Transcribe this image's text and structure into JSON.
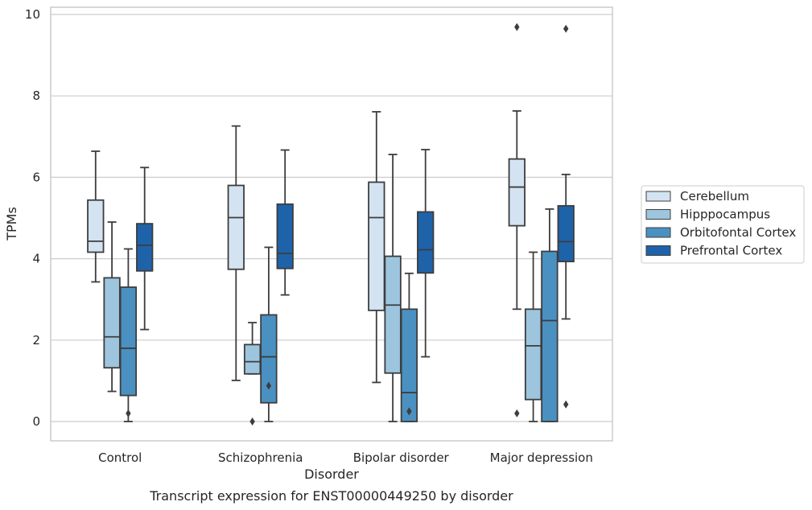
{
  "chart_data": {
    "type": "box",
    "xlabel": "Disorder",
    "ylabel": "TPMs",
    "caption": "Transcript expression for ENST00000449250 by disorder",
    "ylim": [
      -0.45,
      10.2
    ],
    "yticks": [
      0,
      2,
      4,
      6,
      8,
      10
    ],
    "grid": "horizontal",
    "legend_position": "right",
    "categories": [
      "Control",
      "Schizophrenia",
      "Bipolar disorder",
      "Major depression"
    ],
    "series": [
      {
        "name": "Cerebellum",
        "color": "#d4e3f2",
        "boxes": [
          {
            "whisker_low": 3.43,
            "q1": 4.16,
            "median": 4.43,
            "q3": 5.44,
            "whisker_high": 6.64,
            "outliers": []
          },
          {
            "whisker_low": 1.01,
            "q1": 3.74,
            "median": 5.01,
            "q3": 5.8,
            "whisker_high": 7.26,
            "outliers": []
          },
          {
            "whisker_low": 0.96,
            "q1": 2.73,
            "median": 5.01,
            "q3": 5.88,
            "whisker_high": 7.61,
            "outliers": []
          },
          {
            "whisker_low": 2.76,
            "q1": 4.81,
            "median": 5.76,
            "q3": 6.45,
            "whisker_high": 7.63,
            "outliers": [
              9.69,
              0.2
            ]
          }
        ]
      },
      {
        "name": "Hipppocampus",
        "color": "#9dc5de",
        "boxes": [
          {
            "whisker_low": 0.74,
            "q1": 1.32,
            "median": 2.08,
            "q3": 3.53,
            "whisker_high": 4.9,
            "outliers": []
          },
          {
            "whisker_low": 1.17,
            "q1": 1.17,
            "median": 1.47,
            "q3": 1.89,
            "whisker_high": 2.43,
            "outliers": [
              0.0
            ]
          },
          {
            "whisker_low": 0.0,
            "q1": 1.19,
            "median": 2.86,
            "q3": 4.06,
            "whisker_high": 6.56,
            "outliers": []
          },
          {
            "whisker_low": 0.0,
            "q1": 0.54,
            "median": 1.86,
            "q3": 2.76,
            "whisker_high": 4.16,
            "outliers": []
          }
        ]
      },
      {
        "name": "Orbitofontal Cortex",
        "color": "#4a91c2",
        "boxes": [
          {
            "whisker_low": 0.0,
            "q1": 0.64,
            "median": 1.8,
            "q3": 3.3,
            "whisker_high": 4.24,
            "outliers": [
              0.2
            ]
          },
          {
            "whisker_low": 0.0,
            "q1": 0.46,
            "median": 1.59,
            "q3": 2.62,
            "whisker_high": 4.28,
            "outliers": [
              0.88
            ]
          },
          {
            "whisker_low": 0.0,
            "q1": 0.0,
            "median": 0.71,
            "q3": 2.76,
            "whisker_high": 3.64,
            "outliers": [
              0.25
            ]
          },
          {
            "whisker_low": 0.0,
            "q1": 0.0,
            "median": 2.48,
            "q3": 4.18,
            "whisker_high": 5.22,
            "outliers": []
          }
        ]
      },
      {
        "name": "Prefrontal Cortex",
        "color": "#1e63a9",
        "boxes": [
          {
            "whisker_low": 2.26,
            "q1": 3.7,
            "median": 4.33,
            "q3": 4.86,
            "whisker_high": 6.24,
            "outliers": []
          },
          {
            "whisker_low": 3.11,
            "q1": 3.76,
            "median": 4.13,
            "q3": 5.34,
            "whisker_high": 6.67,
            "outliers": []
          },
          {
            "whisker_low": 1.59,
            "q1": 3.65,
            "median": 4.22,
            "q3": 5.15,
            "whisker_high": 6.68,
            "outliers": []
          },
          {
            "whisker_low": 2.52,
            "q1": 3.93,
            "median": 4.42,
            "q3": 5.3,
            "whisker_high": 6.07,
            "outliers": [
              9.65,
              0.42
            ]
          }
        ]
      }
    ]
  }
}
